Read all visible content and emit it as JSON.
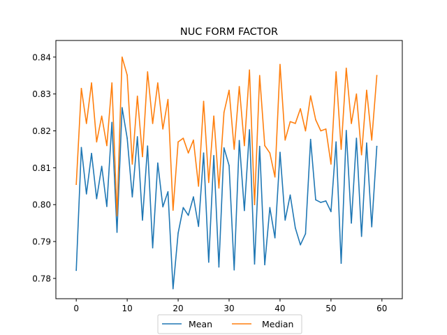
{
  "chart_data": {
    "type": "line",
    "title": "NUC FORM FACTOR",
    "xlabel": "",
    "ylabel": "",
    "xlim": [
      -4,
      64
    ],
    "ylim": [
      0.7745,
      0.8445
    ],
    "x_ticks": [
      0,
      10,
      20,
      30,
      40,
      50,
      60
    ],
    "y_ticks": [
      0.78,
      0.79,
      0.8,
      0.81,
      0.82,
      0.83,
      0.84
    ],
    "x_tick_labels": [
      "0",
      "10",
      "20",
      "30",
      "40",
      "50",
      "60"
    ],
    "y_tick_labels": [
      "0.78",
      "0.79",
      "0.80",
      "0.81",
      "0.82",
      "0.83",
      "0.84"
    ],
    "grid": false,
    "legend_position": "bottom-center",
    "x": [
      0,
      1,
      2,
      3,
      4,
      5,
      6,
      7,
      8,
      9,
      10,
      11,
      12,
      13,
      14,
      15,
      16,
      17,
      18,
      19,
      20,
      21,
      22,
      23,
      24,
      25,
      26,
      27,
      28,
      29,
      30,
      31,
      32,
      33,
      34,
      35,
      36,
      37,
      38,
      39,
      40,
      41,
      42,
      43,
      44,
      45,
      46,
      47,
      48,
      49,
      50,
      51,
      52,
      53,
      54,
      55,
      56,
      57,
      58,
      59
    ],
    "series": [
      {
        "name": "Mean",
        "color": "#1f77b4",
        "values": [
          0.7822,
          0.8155,
          0.8029,
          0.8139,
          0.8016,
          0.8104,
          0.7995,
          0.8223,
          0.7925,
          0.8263,
          0.818,
          0.8021,
          0.8184,
          0.7958,
          0.8159,
          0.7883,
          0.8113,
          0.7994,
          0.8035,
          0.7772,
          0.7923,
          0.7992,
          0.7971,
          0.8021,
          0.7941,
          0.814,
          0.7844,
          0.8133,
          0.7831,
          0.8154,
          0.8106,
          0.7823,
          0.8174,
          0.7984,
          0.8203,
          0.7839,
          0.8158,
          0.7837,
          0.7992,
          0.791,
          0.8142,
          0.7958,
          0.8026,
          0.7937,
          0.7891,
          0.7921,
          0.8177,
          0.8013,
          0.8006,
          0.801,
          0.7981,
          0.817,
          0.7841,
          0.8201,
          0.795,
          0.818,
          0.7914,
          0.8167,
          0.794,
          0.8158
        ]
      },
      {
        "name": "Median",
        "color": "#ff7f0e",
        "values": [
          0.8055,
          0.8315,
          0.822,
          0.833,
          0.817,
          0.824,
          0.816,
          0.833,
          0.797,
          0.84,
          0.8351,
          0.811,
          0.8294,
          0.813,
          0.836,
          0.822,
          0.833,
          0.8205,
          0.8285,
          0.7985,
          0.817,
          0.818,
          0.814,
          0.8175,
          0.805,
          0.828,
          0.806,
          0.824,
          0.8045,
          0.825,
          0.831,
          0.815,
          0.832,
          0.816,
          0.8365,
          0.8,
          0.835,
          0.816,
          0.814,
          0.8075,
          0.838,
          0.8175,
          0.8225,
          0.822,
          0.826,
          0.82,
          0.8295,
          0.823,
          0.82,
          0.8205,
          0.811,
          0.836,
          0.815,
          0.837,
          0.822,
          0.83,
          0.8135,
          0.831,
          0.8175,
          0.835
        ]
      }
    ]
  }
}
